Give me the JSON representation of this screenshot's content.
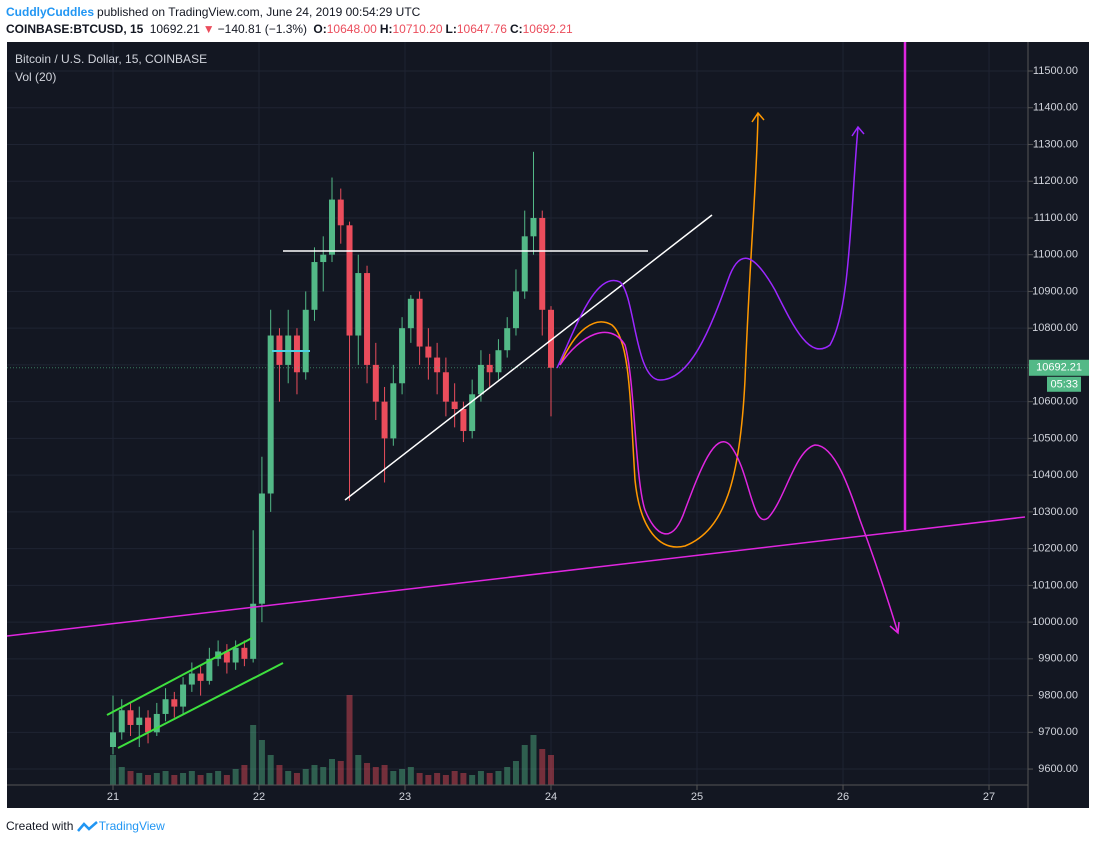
{
  "header": {
    "author": "CuddlyCuddles",
    "published": "published on TradingView.com, June 24, 2019 00:54:29 UTC",
    "symbol": "COINBASE:BTCUSD, 15",
    "last": "10692.21",
    "direction": "▼",
    "change": "−140.81 (−1.3%)",
    "ohlc": [
      {
        "label": "O:",
        "value": "10648.00"
      },
      {
        "label": "H:",
        "value": "10710.20"
      },
      {
        "label": "L:",
        "value": "10647.76"
      },
      {
        "label": "C:",
        "value": "10692.21"
      }
    ]
  },
  "footer": {
    "created": "Created with",
    "brand": "TradingView"
  },
  "chart_data": {
    "type": "candlestick",
    "title": "Bitcoin / U.S. Dollar, 15, COINBASE",
    "volume_label": "Vol (20)",
    "up_color": "#53b987",
    "down_color": "#eb4d5c",
    "grid": true,
    "x": [
      21.0,
      21.06,
      21.12,
      21.18,
      21.24,
      21.3,
      21.36,
      21.42,
      21.48,
      21.54,
      21.6,
      21.66,
      21.72,
      21.78,
      21.84,
      21.9,
      21.96,
      22.02,
      22.08,
      22.14,
      22.2,
      22.26,
      22.32,
      22.38,
      22.44,
      22.5,
      22.56,
      22.62,
      22.68,
      22.74,
      22.8,
      22.86,
      22.92,
      22.98,
      23.04,
      23.1,
      23.16,
      23.22,
      23.28,
      23.34,
      23.4,
      23.46,
      23.52,
      23.58,
      23.64,
      23.7,
      23.76,
      23.82,
      23.88,
      23.94,
      24.0
    ],
    "open": [
      9660,
      9700,
      9760,
      9720,
      9740,
      9700,
      9750,
      9790,
      9770,
      9830,
      9860,
      9840,
      9900,
      9920,
      9890,
      9930,
      9900,
      10050,
      10350,
      10780,
      10700,
      10780,
      10680,
      10850,
      10980,
      11000,
      11150,
      11080,
      10780,
      10950,
      10700,
      10600,
      10500,
      10650,
      10800,
      10880,
      10750,
      10720,
      10680,
      10600,
      10580,
      10520,
      10620,
      10700,
      10680,
      10740,
      10800,
      10900,
      11050,
      11100,
      10850
    ],
    "high": [
      9800,
      9790,
      9780,
      9770,
      9760,
      9780,
      9820,
      9810,
      9850,
      9890,
      9880,
      9930,
      9950,
      9940,
      9950,
      9950,
      10250,
      10450,
      10850,
      10800,
      10850,
      10800,
      10900,
      11020,
      11050,
      11210,
      11180,
      11090,
      11000,
      10970,
      10760,
      10640,
      10700,
      10830,
      10890,
      10900,
      10800,
      10760,
      10720,
      10650,
      10600,
      10660,
      10740,
      10730,
      10770,
      10830,
      10960,
      11120,
      11280,
      11120,
      10860
    ],
    "low": [
      9640,
      9680,
      9690,
      9660,
      9670,
      9690,
      9730,
      9740,
      9750,
      9810,
      9800,
      9830,
      9880,
      9860,
      9870,
      9880,
      9890,
      10000,
      10300,
      10600,
      10650,
      10620,
      10660,
      10820,
      10900,
      10980,
      11030,
      10330,
      10700,
      10650,
      10550,
      10380,
      10480,
      10620,
      10760,
      10700,
      10660,
      10620,
      10560,
      10530,
      10490,
      10500,
      10600,
      10640,
      10660,
      10720,
      10780,
      10880,
      11000,
      10780,
      10560
    ],
    "close": [
      9700,
      9760,
      9720,
      9740,
      9700,
      9750,
      9790,
      9770,
      9830,
      9860,
      9840,
      9900,
      9920,
      9890,
      9930,
      9900,
      10050,
      10350,
      10780,
      10700,
      10780,
      10680,
      10850,
      10980,
      11000,
      11150,
      11080,
      10780,
      10950,
      10700,
      10600,
      10500,
      10650,
      10800,
      10880,
      10750,
      10720,
      10680,
      10600,
      10580,
      10520,
      10620,
      10700,
      10680,
      10740,
      10800,
      10900,
      11050,
      11100,
      10850,
      10692.21
    ],
    "volume": [
      30,
      18,
      14,
      12,
      10,
      12,
      14,
      10,
      12,
      14,
      10,
      12,
      14,
      10,
      16,
      20,
      60,
      45,
      30,
      20,
      14,
      12,
      16,
      20,
      18,
      26,
      24,
      90,
      30,
      22,
      18,
      20,
      14,
      16,
      18,
      12,
      10,
      12,
      10,
      14,
      12,
      10,
      14,
      12,
      14,
      18,
      24,
      40,
      50,
      36,
      30
    ],
    "xlim": [
      20.274,
      27.267
    ],
    "xticks": [
      21,
      22,
      23,
      24,
      25,
      26,
      27
    ],
    "ylim": [
      9556.6,
      11578.9
    ],
    "yticks": [
      {
        "value": 9600,
        "label": "9600.00"
      },
      {
        "value": 9700,
        "label": "9700.00"
      },
      {
        "value": 9800,
        "label": "9800.00"
      },
      {
        "value": 9900,
        "label": "9900.00"
      },
      {
        "value": 10000,
        "label": "10000.00"
      },
      {
        "value": 10100,
        "label": "10100.00"
      },
      {
        "value": 10200,
        "label": "10200.00"
      },
      {
        "value": 10300,
        "label": "10300.00"
      },
      {
        "value": 10400,
        "label": "10400.00"
      },
      {
        "value": 10500,
        "label": "10500.00"
      },
      {
        "value": 10600,
        "label": "10600.00"
      },
      {
        "value": 10700,
        "label": "10700.00"
      },
      {
        "value": 10800,
        "label": "10800.00"
      },
      {
        "value": 10900,
        "label": "10900.00"
      },
      {
        "value": 11000,
        "label": "11000.00"
      },
      {
        "value": 11100,
        "label": "11100.00"
      },
      {
        "value": 11200,
        "label": "11200.00"
      },
      {
        "value": 11300,
        "label": "11300.00"
      },
      {
        "value": 11400,
        "label": "11400.00"
      },
      {
        "value": 11500,
        "label": "11500.00"
      }
    ],
    "last_price": {
      "value": 10692.21,
      "label": "10692.21"
    },
    "countdown": "05:33"
  }
}
